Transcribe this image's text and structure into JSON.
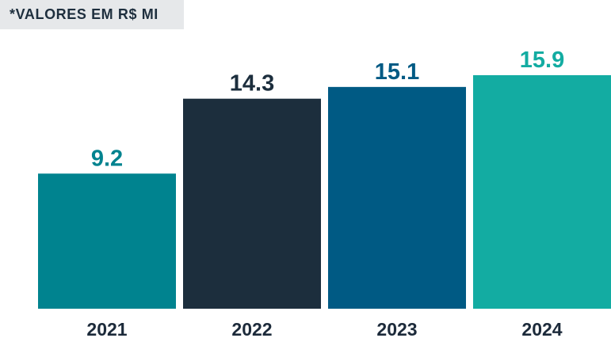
{
  "unit_note": "*VALORES EM R$ MI",
  "chart_data": {
    "type": "bar",
    "categories": [
      "2021",
      "2022",
      "2023",
      "2024"
    ],
    "values": [
      9.2,
      14.3,
      15.1,
      15.9
    ],
    "value_labels": [
      "9.2",
      "14.3",
      "15.1",
      "15.9"
    ],
    "title": "",
    "xlabel": "",
    "ylabel": "",
    "ylim": [
      0,
      15.9
    ],
    "grid": false,
    "bar_colors": [
      "#00838f",
      "#1c2e3d",
      "#005a84",
      "#13aca2"
    ],
    "label_colors": [
      "#00838f",
      "#1c2e3d",
      "#005a84",
      "#13aca2"
    ],
    "tick_label_color": "#1c2a3a",
    "unit_badge_background": "#e6e8ea"
  }
}
